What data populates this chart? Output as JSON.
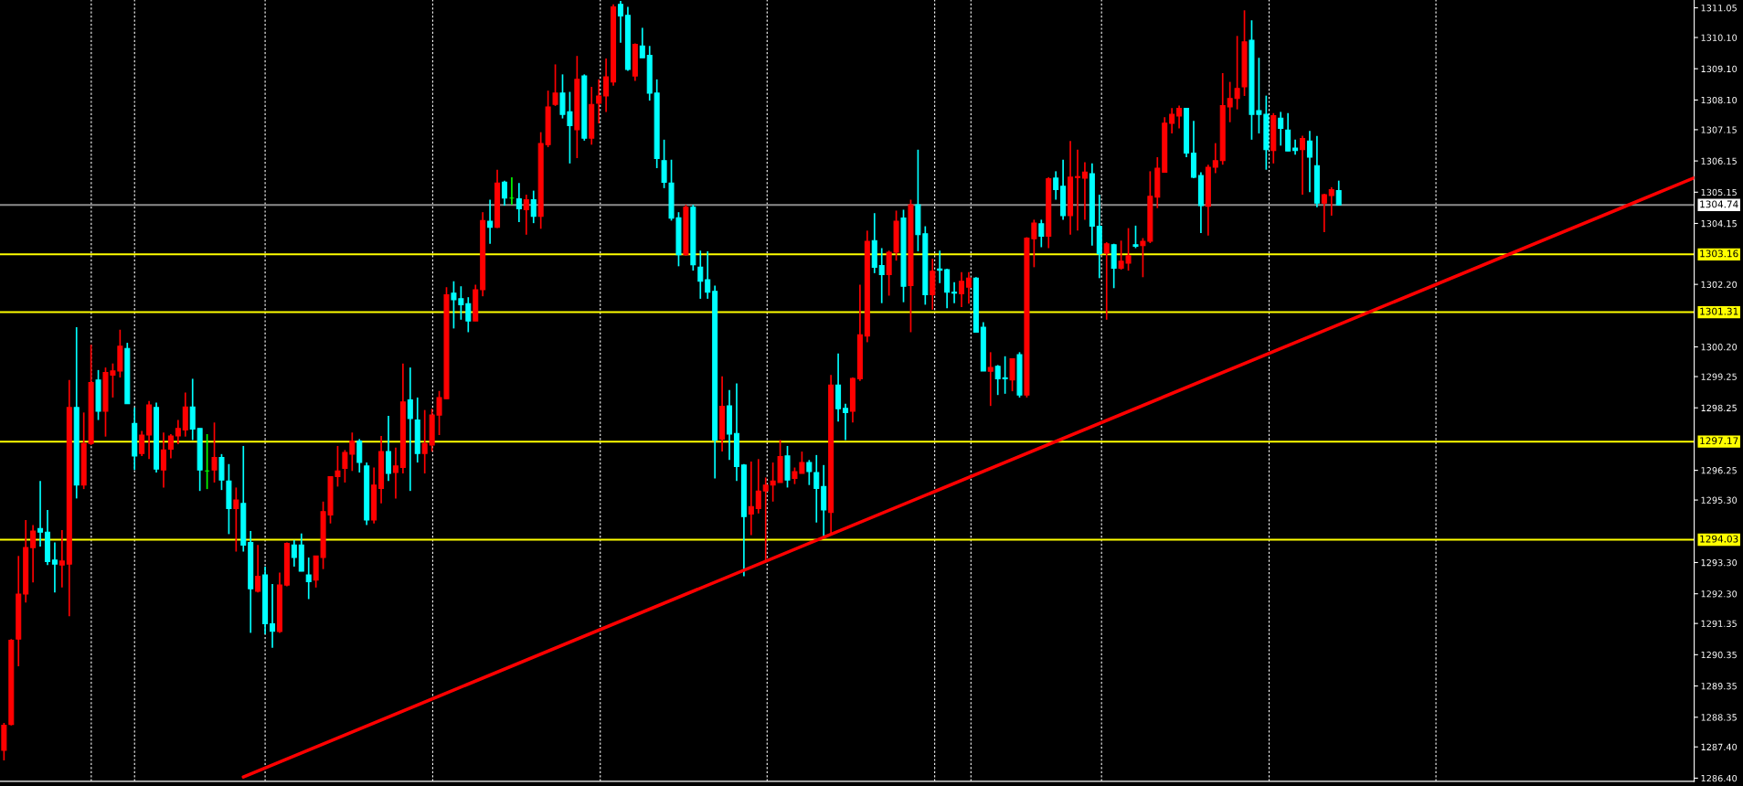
{
  "chart_data": {
    "type": "candlestick",
    "categories": [
      null,
      null,
      null,
      null,
      null,
      null,
      null,
      null,
      null,
      null,
      null,
      null,
      null,
      null,
      null,
      null,
      null,
      null,
      null,
      null,
      null,
      null,
      null,
      null,
      null,
      null,
      null,
      null,
      null,
      null,
      null,
      null,
      null,
      null,
      null,
      null,
      null,
      null,
      null,
      null,
      null,
      null,
      null,
      null,
      null,
      null,
      null,
      null,
      null,
      null,
      null,
      null,
      null,
      null,
      null,
      null,
      null,
      null,
      null,
      null,
      null,
      null,
      null,
      null,
      null,
      null,
      null,
      null,
      null,
      null,
      null,
      null,
      null,
      null,
      null,
      null,
      null,
      null,
      null,
      null,
      null,
      null,
      null,
      null,
      null,
      null,
      null,
      null,
      null,
      null,
      null,
      null,
      null,
      null,
      null,
      null,
      null,
      null,
      null,
      null,
      null,
      null,
      null,
      null,
      null,
      null,
      null,
      null,
      null,
      null,
      null,
      null,
      null,
      null,
      null,
      null,
      null,
      null,
      null,
      null,
      null,
      null,
      null,
      null,
      null,
      null,
      null,
      null,
      null,
      null,
      null,
      null,
      null,
      null,
      null,
      null,
      null,
      null,
      null,
      null,
      null,
      null,
      null,
      null,
      null,
      null,
      null,
      null,
      null,
      null,
      null,
      null,
      null,
      null,
      null,
      null,
      null,
      null,
      null,
      null,
      null,
      null,
      null,
      null,
      null,
      null,
      null,
      null,
      null,
      null,
      null,
      null,
      null,
      null,
      null,
      null,
      null,
      null,
      null,
      null,
      null,
      null,
      null,
      null,
      null,
      null,
      null,
      null,
      null,
      null,
      null,
      null,
      null,
      null,
      null,
      null,
      null,
      null,
      null,
      null,
      null,
      null,
      null,
      null,
      null,
      null,
      null,
      null,
      null,
      null,
      null,
      null,
      null,
      null,
      null,
      null,
      null,
      null,
      null,
      null,
      null,
      null,
      null,
      null,
      null,
      null,
      null,
      null,
      null,
      null,
      null,
      null,
      null,
      null
    ],
    "ohlc": [
      [
        1287.29,
        1288.17,
        1286.97,
        1288.09
      ],
      [
        1288.12,
        1290.85,
        1288.09,
        1290.81
      ],
      [
        1290.85,
        1293.51,
        1289.98,
        1292.29
      ],
      [
        1292.29,
        1294.66,
        1292.02,
        1293.78
      ],
      [
        1293.78,
        1294.5,
        1292.66,
        1294.31
      ],
      [
        1294.39,
        1295.91,
        1293.81,
        1294.27
      ],
      [
        1294.27,
        1294.98,
        1293.22,
        1293.33
      ],
      [
        1293.38,
        1293.94,
        1292.34,
        1293.25
      ],
      [
        1293.22,
        1294.34,
        1292.5,
        1293.35
      ],
      [
        1293.25,
        1299.14,
        1291.58,
        1298.26
      ],
      [
        1298.26,
        1300.83,
        1295.35,
        1295.78
      ],
      [
        1295.78,
        1298.1,
        1295.65,
        1297.11
      ],
      [
        1297.11,
        1300.27,
        1297.06,
        1299.06
      ],
      [
        1299.14,
        1299.46,
        1297.86,
        1298.14
      ],
      [
        1298.14,
        1299.54,
        1297.33,
        1299.38
      ],
      [
        1299.3,
        1299.67,
        1298.58,
        1299.43
      ],
      [
        1299.43,
        1300.75,
        1299.22,
        1300.22
      ],
      [
        1300.15,
        1300.33,
        1298.38,
        1298.38
      ],
      [
        1297.75,
        1298.26,
        1296.26,
        1296.71
      ],
      [
        1296.79,
        1297.51,
        1296.71,
        1297.38
      ],
      [
        1297.38,
        1298.47,
        1296.61,
        1298.34
      ],
      [
        1298.26,
        1298.42,
        1296.18,
        1296.29
      ],
      [
        1296.26,
        1297.46,
        1295.7,
        1296.9
      ],
      [
        1296.93,
        1297.41,
        1296.63,
        1297.35
      ],
      [
        1297.35,
        1297.86,
        1297.09,
        1297.59
      ],
      [
        1297.54,
        1298.74,
        1297.33,
        1298.28
      ],
      [
        1298.28,
        1299.18,
        1297.22,
        1297.57
      ],
      [
        1297.59,
        1297.59,
        1295.59,
        1296.26
      ],
      [
        1296.23,
        1297.41,
        1295.65,
        1296.23
      ],
      [
        1296.26,
        1297.78,
        1295.86,
        1296.66
      ],
      [
        1296.66,
        1296.77,
        1295.62,
        1295.94
      ],
      [
        1295.91,
        1296.45,
        1294.21,
        1295.03
      ],
      [
        1295.03,
        1295.7,
        1293.65,
        1295.3
      ],
      [
        1295.19,
        1297.03,
        1293.65,
        1293.86
      ],
      [
        1293.94,
        1294.31,
        1291.05,
        1292.46
      ],
      [
        1292.38,
        1293.86,
        1292.34,
        1292.86
      ],
      [
        1292.9,
        1293.17,
        1291.01,
        1291.34
      ],
      [
        1291.34,
        1292.61,
        1290.57,
        1291.1
      ],
      [
        1291.09,
        1292.98,
        1291.05,
        1292.58
      ],
      [
        1292.58,
        1293.94,
        1292.54,
        1293.91
      ],
      [
        1293.86,
        1294.02,
        1293.17,
        1293.46
      ],
      [
        1293.86,
        1294.23,
        1293.02,
        1293.02
      ],
      [
        1292.9,
        1293.46,
        1292.13,
        1292.69
      ],
      [
        1292.74,
        1293.51,
        1292.5,
        1293.51
      ],
      [
        1293.46,
        1295.25,
        1293.09,
        1294.93
      ],
      [
        1294.82,
        1296.05,
        1294.55,
        1296.05
      ],
      [
        1296.05,
        1297.03,
        1295.73,
        1296.23
      ],
      [
        1296.31,
        1296.9,
        1295.86,
        1296.82
      ],
      [
        1296.77,
        1297.46,
        1296.23,
        1297.19
      ],
      [
        1297.19,
        1297.25,
        1296.18,
        1296.5
      ],
      [
        1296.39,
        1296.5,
        1294.5,
        1294.66
      ],
      [
        1294.66,
        1296.34,
        1294.55,
        1295.78
      ],
      [
        1295.67,
        1297.35,
        1295.19,
        1296.85
      ],
      [
        1296.85,
        1297.99,
        1295.91,
        1296.15
      ],
      [
        1296.18,
        1296.98,
        1295.35,
        1296.39
      ],
      [
        1296.34,
        1299.67,
        1296.15,
        1298.44
      ],
      [
        1298.5,
        1299.54,
        1295.59,
        1297.91
      ],
      [
        1297.86,
        1298.58,
        1296.5,
        1296.79
      ],
      [
        1296.79,
        1298.18,
        1296.15,
        1297.11
      ],
      [
        1297.06,
        1298.22,
        1296.85,
        1298.02
      ],
      [
        1298.02,
        1298.79,
        1297.38,
        1298.58
      ],
      [
        1298.54,
        1302.11,
        1298.54,
        1301.87
      ],
      [
        1301.92,
        1302.3,
        1300.79,
        1301.71
      ],
      [
        1301.74,
        1302.14,
        1301.07,
        1301.55
      ],
      [
        1301.58,
        1301.79,
        1300.67,
        1301.03
      ],
      [
        1301.03,
        1302.19,
        1301.03,
        1302.03
      ],
      [
        1302.03,
        1304.51,
        1301.82,
        1304.24
      ],
      [
        1304.22,
        1304.91,
        1303.5,
        1304.03
      ],
      [
        1304.03,
        1305.87,
        1304.0,
        1305.44
      ],
      [
        1305.47,
        1305.52,
        1304.72,
        1304.96
      ],
      [
        1304.96,
        1305.63,
        1304.75,
        1304.96
      ],
      [
        1304.94,
        1305.44,
        1304.19,
        1304.62
      ],
      [
        1304.59,
        1305.07,
        1303.79,
        1304.91
      ],
      [
        1304.91,
        1305.2,
        1304.16,
        1304.38
      ],
      [
        1304.38,
        1307.07,
        1303.98,
        1306.71
      ],
      [
        1306.67,
        1308.4,
        1306.59,
        1307.88
      ],
      [
        1307.96,
        1309.24,
        1307.91,
        1308.32
      ],
      [
        1308.32,
        1308.92,
        1307.51,
        1307.64
      ],
      [
        1307.72,
        1308.36,
        1306.07,
        1307.28
      ],
      [
        1307.15,
        1309.51,
        1306.24,
        1308.76
      ],
      [
        1308.87,
        1308.92,
        1306.8,
        1306.88
      ],
      [
        1306.88,
        1308.52,
        1306.67,
        1307.96
      ],
      [
        1308.0,
        1308.76,
        1307.35,
        1308.23
      ],
      [
        1308.23,
        1309.43,
        1307.72,
        1308.84
      ],
      [
        1308.68,
        1311.16,
        1308.56,
        1311.08
      ],
      [
        1311.16,
        1311.27,
        1309.93,
        1310.79
      ],
      [
        1310.81,
        1311.08,
        1309.03,
        1309.08
      ],
      [
        1308.87,
        1309.91,
        1308.71,
        1309.88
      ],
      [
        1309.83,
        1310.41,
        1309.45,
        1309.45
      ],
      [
        1309.53,
        1309.83,
        1308.08,
        1308.32
      ],
      [
        1308.32,
        1308.76,
        1305.92,
        1306.23
      ],
      [
        1306.16,
        1306.83,
        1305.28,
        1305.47
      ],
      [
        1305.44,
        1306.19,
        1304.24,
        1304.32
      ],
      [
        1304.33,
        1304.51,
        1302.78,
        1303.15
      ],
      [
        1303.15,
        1304.75,
        1303.12,
        1304.67
      ],
      [
        1304.67,
        1304.75,
        1302.64,
        1302.83
      ],
      [
        1302.75,
        1303.28,
        1301.74,
        1302.3
      ],
      [
        1302.35,
        1303.26,
        1301.74,
        1301.95
      ],
      [
        1301.98,
        1302.16,
        1295.99,
        1297.22
      ],
      [
        1297.25,
        1299.26,
        1296.85,
        1298.3
      ],
      [
        1298.31,
        1298.82,
        1296.58,
        1297.41
      ],
      [
        1297.43,
        1299.03,
        1295.91,
        1296.37
      ],
      [
        1296.42,
        1296.45,
        1292.86,
        1294.77
      ],
      [
        1294.85,
        1296.53,
        1294.18,
        1295.09
      ],
      [
        1295.03,
        1296.61,
        1294.87,
        1295.59
      ],
      [
        1295.59,
        1296.02,
        1293.35,
        1295.78
      ],
      [
        1295.78,
        1296.5,
        1295.25,
        1295.91
      ],
      [
        1295.86,
        1297.22,
        1295.86,
        1296.69
      ],
      [
        1296.71,
        1297.03,
        1295.7,
        1295.94
      ],
      [
        1295.99,
        1296.34,
        1295.81,
        1296.21
      ],
      [
        1296.15,
        1296.85,
        1296.15,
        1296.5
      ],
      [
        1296.5,
        1296.58,
        1295.78,
        1296.21
      ],
      [
        1296.18,
        1296.74,
        1294.58,
        1295.67
      ],
      [
        1295.73,
        1296.42,
        1294.1,
        1294.98
      ],
      [
        1294.9,
        1299.3,
        1294.21,
        1298.98
      ],
      [
        1298.98,
        1299.99,
        1297.81,
        1298.22
      ],
      [
        1298.23,
        1298.38,
        1297.22,
        1298.1
      ],
      [
        1298.14,
        1299.22,
        1297.78,
        1299.19
      ],
      [
        1299.18,
        1302.19,
        1299.11,
        1300.59
      ],
      [
        1300.55,
        1303.92,
        1300.35,
        1303.58
      ],
      [
        1303.6,
        1304.48,
        1302.56,
        1302.75
      ],
      [
        1302.8,
        1303.36,
        1301.6,
        1302.51
      ],
      [
        1302.51,
        1303.28,
        1301.84,
        1303.23
      ],
      [
        1303.23,
        1304.56,
        1302.96,
        1304.22
      ],
      [
        1304.32,
        1304.59,
        1301.63,
        1302.14
      ],
      [
        1302.16,
        1304.91,
        1300.67,
        1304.75
      ],
      [
        1304.75,
        1306.51,
        1303.26,
        1303.79
      ],
      [
        1303.82,
        1304.06,
        1301.55,
        1301.87
      ],
      [
        1301.87,
        1303.02,
        1301.39,
        1302.62
      ],
      [
        1302.69,
        1303.28,
        1302.24,
        1302.65
      ],
      [
        1302.67,
        1302.7,
        1301.44,
        1301.95
      ],
      [
        1301.95,
        1302.27,
        1301.6,
        1301.92
      ],
      [
        1301.9,
        1302.59,
        1301.47,
        1302.3
      ],
      [
        1302.11,
        1302.59,
        1301.58,
        1302.4
      ],
      [
        1302.4,
        1302.43,
        1300.67,
        1300.67
      ],
      [
        1300.83,
        1300.99,
        1299.43,
        1299.43
      ],
      [
        1299.42,
        1300.03,
        1298.31,
        1299.54
      ],
      [
        1299.58,
        1299.62,
        1298.66,
        1299.18
      ],
      [
        1299.21,
        1299.9,
        1298.7,
        1299.18
      ],
      [
        1299.14,
        1299.82,
        1298.78,
        1299.82
      ],
      [
        1299.95,
        1300.03,
        1298.58,
        1298.66
      ],
      [
        1298.66,
        1303.71,
        1298.58,
        1303.68
      ],
      [
        1303.66,
        1304.27,
        1302.75,
        1304.16
      ],
      [
        1304.14,
        1304.27,
        1303.39,
        1303.74
      ],
      [
        1303.74,
        1305.63,
        1303.36,
        1305.58
      ],
      [
        1305.6,
        1305.82,
        1304.91,
        1305.23
      ],
      [
        1305.34,
        1306.19,
        1304.27,
        1304.4
      ],
      [
        1304.4,
        1306.79,
        1303.79,
        1305.63
      ],
      [
        1305.62,
        1306.51,
        1303.92,
        1305.65
      ],
      [
        1305.6,
        1306.11,
        1304.27,
        1305.79
      ],
      [
        1305.74,
        1306.07,
        1303.44,
        1304.06
      ],
      [
        1304.06,
        1305.07,
        1302.4,
        1303.18
      ],
      [
        1303.2,
        1303.55,
        1301.07,
        1303.5
      ],
      [
        1303.47,
        1303.5,
        1302.08,
        1302.72
      ],
      [
        1302.72,
        1303.6,
        1302.67,
        1302.94
      ],
      [
        1302.88,
        1304.0,
        1302.64,
        1303.12
      ],
      [
        1303.47,
        1304.08,
        1303.36,
        1303.42
      ],
      [
        1303.44,
        1303.68,
        1302.43,
        1303.58
      ],
      [
        1303.58,
        1305.82,
        1303.52,
        1305.02
      ],
      [
        1304.99,
        1306.27,
        1304.64,
        1305.92
      ],
      [
        1305.79,
        1307.55,
        1305.79,
        1307.36
      ],
      [
        1307.35,
        1307.84,
        1307.03,
        1307.64
      ],
      [
        1307.59,
        1307.92,
        1307.19,
        1307.83
      ],
      [
        1307.83,
        1307.83,
        1306.27,
        1306.4
      ],
      [
        1306.4,
        1307.43,
        1305.6,
        1305.63
      ],
      [
        1305.68,
        1305.79,
        1303.84,
        1304.72
      ],
      [
        1304.7,
        1306.03,
        1303.76,
        1305.95
      ],
      [
        1305.95,
        1306.72,
        1305.76,
        1306.16
      ],
      [
        1306.16,
        1308.96,
        1306.03,
        1307.92
      ],
      [
        1307.88,
        1308.68,
        1307.39,
        1308.15
      ],
      [
        1308.15,
        1310.15,
        1307.8,
        1308.47
      ],
      [
        1308.52,
        1310.97,
        1308.23,
        1309.96
      ],
      [
        1310.01,
        1310.65,
        1306.83,
        1307.64
      ],
      [
        1307.76,
        1309.45,
        1307.03,
        1307.64
      ],
      [
        1307.64,
        1308.24,
        1305.87,
        1306.51
      ],
      [
        1306.48,
        1307.68,
        1306.07,
        1307.6
      ],
      [
        1307.52,
        1307.72,
        1306.64,
        1307.19
      ],
      [
        1307.14,
        1307.68,
        1306.47,
        1306.47
      ],
      [
        1306.56,
        1306.83,
        1306.35,
        1306.48
      ],
      [
        1306.51,
        1306.96,
        1305.07,
        1306.87
      ],
      [
        1306.79,
        1307.11,
        1305.15,
        1306.27
      ],
      [
        1306.0,
        1306.95,
        1304.67,
        1304.8
      ],
      [
        1304.8,
        1305.1,
        1303.87,
        1305.07
      ],
      [
        1305.04,
        1305.31,
        1304.4,
        1305.23
      ],
      [
        1305.2,
        1305.52,
        1304.72,
        1304.74
      ],
      null,
      null,
      null,
      null,
      null,
      null,
      null,
      null,
      null,
      null,
      null,
      null,
      null,
      null,
      null,
      null,
      null,
      null,
      null,
      null,
      null,
      null,
      null,
      null,
      null,
      null,
      null,
      null,
      null,
      null,
      null,
      null,
      null,
      null,
      null,
      null,
      null,
      null,
      null,
      null,
      null,
      null,
      null,
      null,
      null,
      null,
      null,
      null,
      null
    ],
    "colors": [
      "#ff0000",
      "#ff0000",
      "#ff0000",
      "#ff0000",
      "#ff0000",
      "#00ffff",
      "#00ffff",
      "#00ffff",
      "#ff0000",
      "#ff0000",
      "#00ffff",
      "#ff0000",
      "#ff0000",
      "#00ffff",
      "#ff0000",
      "#ff0000",
      "#ff0000",
      "#00ffff",
      "#00ffff",
      "#ff0000",
      "#ff0000",
      "#00ffff",
      "#ff0000",
      "#ff0000",
      "#ff0000",
      "#ff0000",
      "#00ffff",
      "#00ffff",
      "#00ff00",
      "#ff0000",
      "#00ffff",
      "#00ffff",
      "#ff0000",
      "#00ffff",
      "#00ffff",
      "#ff0000",
      "#00ffff",
      "#00ffff",
      "#ff0000",
      "#ff0000",
      "#00ffff",
      "#00ffff",
      "#00ffff",
      "#ff0000",
      "#ff0000",
      "#ff0000",
      "#ff0000",
      "#ff0000",
      "#ff0000",
      "#00ffff",
      "#00ffff",
      "#ff0000",
      "#ff0000",
      "#00ffff",
      "#ff0000",
      "#ff0000",
      "#00ffff",
      "#00ffff",
      "#ff0000",
      "#ff0000",
      "#ff0000",
      "#ff0000",
      "#00ffff",
      "#00ffff",
      "#00ffff",
      "#ff0000",
      "#ff0000",
      "#00ffff",
      "#ff0000",
      "#00ffff",
      "#00ff00",
      "#00ffff",
      "#ff0000",
      "#00ffff",
      "#ff0000",
      "#ff0000",
      "#ff0000",
      "#00ffff",
      "#00ffff",
      "#ff0000",
      "#00ffff",
      "#ff0000",
      "#ff0000",
      "#ff0000",
      "#ff0000",
      "#00ffff",
      "#00ffff",
      "#ff0000",
      "#00ffff",
      "#00ffff",
      "#00ffff",
      "#00ffff",
      "#00ffff",
      "#00ffff",
      "#ff0000",
      "#00ffff",
      "#00ffff",
      "#00ffff",
      "#00ffff",
      "#ff0000",
      "#00ffff",
      "#00ffff",
      "#00ffff",
      "#ff0000",
      "#ff0000",
      "#ff0000",
      "#ff0000",
      "#ff0000",
      "#00ffff",
      "#ff0000",
      "#ff0000",
      "#00ffff",
      "#00ffff",
      "#00ffff",
      "#ff0000",
      "#00ffff",
      "#00ffff",
      "#ff0000",
      "#ff0000",
      "#ff0000",
      "#00ffff",
      "#00ffff",
      "#ff0000",
      "#ff0000",
      "#00ffff",
      "#ff0000",
      "#00ffff",
      "#00ffff",
      "#ff0000",
      "#00ffff",
      "#00ffff",
      "#00ffff",
      "#ff0000",
      "#ff0000",
      "#00ffff",
      "#00ffff",
      "#ff0000",
      "#00ffff",
      "#00ffff",
      "#ff0000",
      "#00ffff",
      "#ff0000",
      "#ff0000",
      "#00ffff",
      "#ff0000",
      "#00ffff",
      "#00ffff",
      "#ff0000",
      "#ff0000",
      "#ff0000",
      "#00ffff",
      "#00ffff",
      "#ff0000",
      "#00ffff",
      "#ff0000",
      "#ff0000",
      "#00ffff",
      "#ff0000",
      "#ff0000",
      "#ff0000",
      "#ff0000",
      "#ff0000",
      "#ff0000",
      "#00ffff",
      "#00ffff",
      "#00ffff",
      "#ff0000",
      "#ff0000",
      "#ff0000",
      "#ff0000",
      "#ff0000",
      "#ff0000",
      "#00ffff",
      "#00ffff",
      "#00ffff",
      "#ff0000",
      "#00ffff",
      "#00ffff",
      "#00ffff",
      "#ff0000",
      "#00ffff",
      "#00ffff",
      "#ff0000",
      "#ff0000",
      "#00ffff",
      null,
      null,
      null,
      null,
      null,
      null,
      null,
      null,
      null,
      null,
      null,
      null,
      null,
      null,
      null,
      null,
      null,
      null,
      null,
      null,
      null,
      null,
      null,
      null,
      null,
      null,
      null,
      null,
      null,
      null,
      null,
      null,
      null,
      null,
      null,
      null,
      null,
      null,
      null,
      null,
      null,
      null,
      null,
      null,
      null,
      null,
      null,
      null,
      null
    ],
    "series": [
      {
        "type": "line",
        "color": "#ff0000",
        "values": [
          null,
          null,
          null,
          null,
          null,
          null,
          null,
          null,
          null,
          null,
          null,
          null,
          null,
          null,
          null,
          null,
          null,
          null,
          null,
          null,
          null,
          null,
          null,
          null,
          null,
          null,
          null,
          null,
          null,
          null,
          null,
          null,
          null,
          1286.44,
          null,
          null,
          null,
          null,
          null,
          null,
          null,
          null,
          null,
          null,
          null,
          null,
          null,
          null,
          null,
          null,
          null,
          null,
          null,
          null,
          null,
          null,
          null,
          null,
          null,
          null,
          null,
          null,
          null,
          null,
          null,
          null,
          null,
          null,
          null,
          null,
          null,
          null,
          null,
          null,
          null,
          null,
          null,
          null,
          null,
          null,
          null,
          null,
          null,
          null,
          null,
          null,
          null,
          null,
          null,
          null,
          null,
          null,
          null,
          null,
          null,
          null,
          null,
          null,
          null,
          null,
          null,
          null,
          null,
          null,
          null,
          null,
          null,
          null,
          null,
          null,
          null,
          null,
          null,
          null,
          null,
          null,
          null,
          null,
          null,
          null,
          null,
          null,
          null,
          null,
          null,
          null,
          null,
          null,
          null,
          null,
          null,
          null,
          null,
          null,
          null,
          null,
          null,
          null,
          null,
          null,
          null,
          null,
          null,
          null,
          null,
          null,
          null,
          null,
          null,
          null,
          null,
          null,
          null,
          null,
          null,
          null,
          null,
          null,
          null,
          null,
          null,
          null,
          null,
          null,
          null,
          null,
          null,
          null,
          null,
          null,
          null,
          null,
          null,
          null,
          null,
          null,
          null,
          null,
          null,
          null,
          null,
          null,
          null,
          null,
          null,
          null,
          null,
          null,
          null,
          null,
          null,
          null,
          null,
          null,
          null,
          null,
          null,
          null,
          null,
          null,
          null,
          null,
          null,
          null,
          null,
          null,
          null,
          null,
          null,
          null,
          null,
          null,
          null,
          null,
          null,
          null,
          null,
          null,
          null,
          null,
          null,
          null,
          null,
          null,
          null,
          null,
          null,
          null,
          null,
          null,
          null,
          null,
          null,
          1305.61
        ]
      }
    ],
    "ylim": [
      1286.3,
      1311.3
    ],
    "yticks": [
      {
        "value": 1311.05,
        "label": "1311.05"
      },
      {
        "value": 1310.1,
        "label": "1310.10"
      },
      {
        "value": 1309.1,
        "label": "1309.10"
      },
      {
        "value": 1308.1,
        "label": "1308.10"
      },
      {
        "value": 1307.15,
        "label": "1307.15"
      },
      {
        "value": 1306.15,
        "label": "1306.15"
      },
      {
        "value": 1305.15,
        "label": "1305.15"
      },
      {
        "value": 1304.15,
        "label": "1304.15"
      },
      {
        "value": 1302.2,
        "label": "1302.20"
      },
      {
        "value": 1300.2,
        "label": "1300.20"
      },
      {
        "value": 1299.25,
        "label": "1299.25"
      },
      {
        "value": 1298.25,
        "label": "1298.25"
      },
      {
        "value": 1296.25,
        "label": "1296.25"
      },
      {
        "value": 1295.3,
        "label": "1295.30"
      },
      {
        "value": 1293.3,
        "label": "1293.30"
      },
      {
        "value": 1292.3,
        "label": "1292.30"
      },
      {
        "value": 1291.35,
        "label": "1291.35"
      },
      {
        "value": 1290.35,
        "label": "1290.35"
      },
      {
        "value": 1289.35,
        "label": "1289.35"
      },
      {
        "value": 1288.35,
        "label": "1288.35"
      },
      {
        "value": 1287.4,
        "label": "1287.40"
      },
      {
        "value": 1286.4,
        "label": "1286.40"
      }
    ],
    "ref_lines": [
      {
        "axis": "y",
        "value": 1304.74,
        "label": "1304.74",
        "color": "#8c8c8c"
      },
      {
        "axis": "y",
        "value": 1303.16,
        "label": "1303.16",
        "color": "#ffff00"
      },
      {
        "axis": "y",
        "value": 1301.31,
        "label": "1301.31",
        "color": "#ffff00"
      },
      {
        "axis": "y",
        "value": 1297.17,
        "label": "1297.17",
        "color": "#ffff00"
      },
      {
        "axis": "y",
        "value": 1294.03,
        "label": "1294.03",
        "color": "#ffff00"
      }
    ],
    "tick_labels": "y"
  }
}
